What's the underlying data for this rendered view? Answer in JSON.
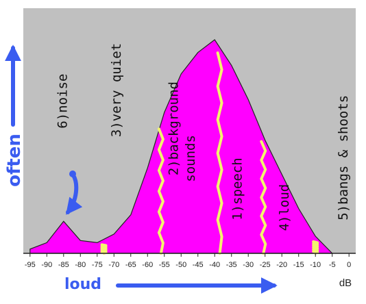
{
  "chart_data": {
    "type": "area",
    "x_unit": "dB",
    "y_axis_label": "often",
    "x_axis_label": "loud",
    "xlim": [
      -97,
      2
    ],
    "ylim": [
      0,
      100
    ],
    "x_ticks": [
      -95,
      -90,
      -85,
      -80,
      -75,
      -70,
      -65,
      -60,
      -55,
      -50,
      -45,
      -40,
      -35,
      -30,
      -25,
      -20,
      -15,
      -10,
      -5,
      0
    ],
    "x": [
      -95,
      -90,
      -85,
      -80,
      -75,
      -70,
      -65,
      -60,
      -55,
      -50,
      -45,
      -40,
      -35,
      -30,
      -25,
      -20,
      -15,
      -10,
      -5
    ],
    "values": [
      2,
      5,
      15,
      6,
      5,
      9,
      18,
      40,
      66,
      84,
      94,
      100,
      88,
      72,
      53,
      37,
      21,
      8,
      0
    ],
    "colors": {
      "background": "#c0c0c0",
      "fill": "#ff00ff",
      "dividers": "#f4f46e",
      "annotation": "#3a5cf0"
    },
    "dividers_db": [
      -73,
      -56,
      -38.5,
      -25.5,
      -10
    ],
    "regions": [
      {
        "label": "6)noise",
        "x": -84,
        "y": 61,
        "direction": "up"
      },
      {
        "label": "3)very quiet",
        "x": -68,
        "y": 57,
        "direction": "up"
      },
      {
        "label": "2)background",
        "x": -51,
        "y": 39,
        "direction": "up"
      },
      {
        "label": "sounds",
        "x": -46,
        "y": 36,
        "direction": "up"
      },
      {
        "label": "1)speech",
        "x": -32,
        "y": 18,
        "direction": "up"
      },
      {
        "label": "4)loud",
        "x": -18,
        "y": 13,
        "direction": "up"
      },
      {
        "label": "5)bangs & shoots",
        "x": -0.5,
        "y": 18,
        "direction": "up"
      }
    ]
  }
}
